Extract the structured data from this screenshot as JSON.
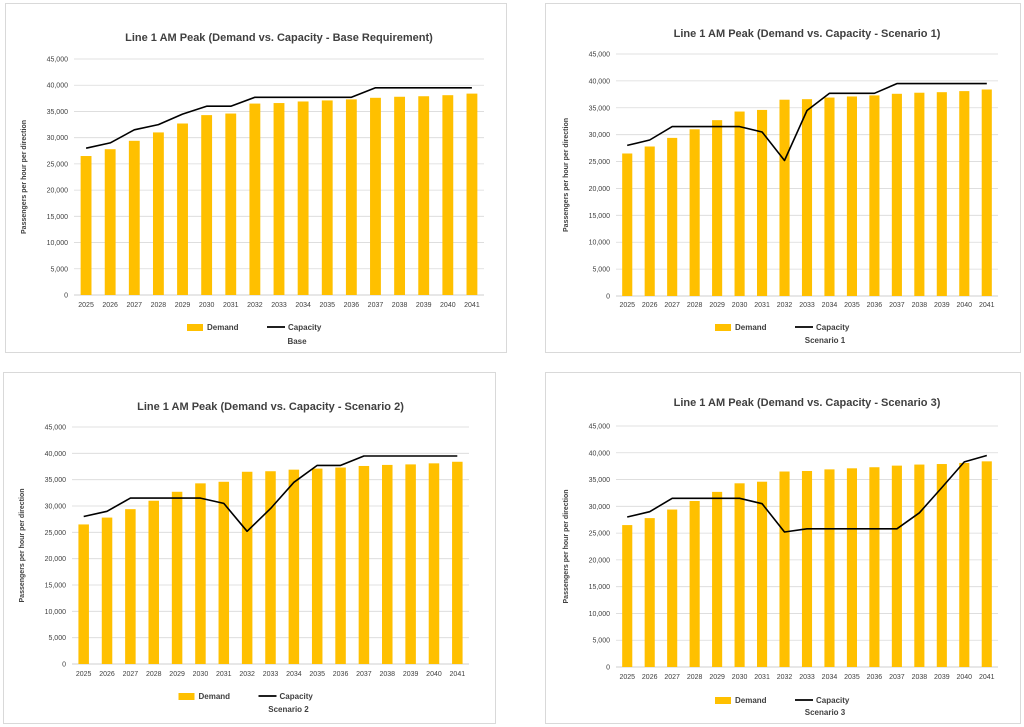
{
  "colors": {
    "demand": "#FFC000",
    "capacity": "#000000",
    "grid": "#d9d9d9",
    "axis": "#bfbfbf",
    "text": "#404040"
  },
  "chart_data": [
    {
      "type": "bar",
      "title": "Line 1 AM Peak (Demand vs. Capacity - Base Requirement)",
      "ylabel": "Passengers per hour per direction",
      "caption": "Base",
      "categories": [
        "2025",
        "2026",
        "2027",
        "2028",
        "2029",
        "2030",
        "2031",
        "2032",
        "2033",
        "2034",
        "2035",
        "2036",
        "2037",
        "2038",
        "2039",
        "2040",
        "2041"
      ],
      "yticks": [
        "0",
        "5,000",
        "10,000",
        "15,000",
        "20,000",
        "25,000",
        "30,000",
        "35,000",
        "40,000",
        "45,000"
      ],
      "ylim": [
        0,
        45000
      ],
      "legend_placement": "bottom",
      "series": [
        {
          "name": "Demand",
          "kind": "bar",
          "values": [
            26500,
            27800,
            29400,
            31000,
            32700,
            34300,
            34600,
            36500,
            36600,
            36900,
            37100,
            37300,
            37600,
            37800,
            37900,
            38100,
            38400
          ]
        },
        {
          "name": "Capacity",
          "kind": "line",
          "values": [
            28000,
            29000,
            31500,
            32500,
            34500,
            36000,
            36000,
            37700,
            37700,
            37700,
            37700,
            37700,
            39500,
            39500,
            39500,
            39500,
            39500
          ]
        }
      ]
    },
    {
      "type": "bar",
      "title": "Line 1 AM Peak (Demand vs. Capacity - Scenario 1)",
      "ylabel": "Passengers per hour per direction",
      "caption": "Scenario 1",
      "categories": [
        "2025",
        "2026",
        "2027",
        "2028",
        "2029",
        "2030",
        "2031",
        "2032",
        "2033",
        "2034",
        "2035",
        "2036",
        "2037",
        "2038",
        "2039",
        "2040",
        "2041"
      ],
      "yticks": [
        "0",
        "5,000",
        "10,000",
        "15,000",
        "20,000",
        "25,000",
        "30,000",
        "35,000",
        "40,000",
        "45,000"
      ],
      "ylim": [
        0,
        45000
      ],
      "legend_placement": "bottom",
      "series": [
        {
          "name": "Demand",
          "kind": "bar",
          "values": [
            26500,
            27800,
            29400,
            31000,
            32700,
            34300,
            34600,
            36500,
            36600,
            36900,
            37100,
            37300,
            37600,
            37800,
            37900,
            38100,
            38400
          ]
        },
        {
          "name": "Capacity",
          "kind": "line",
          "values": [
            28000,
            29000,
            31500,
            31500,
            31500,
            31500,
            30500,
            25200,
            34500,
            37700,
            37700,
            37700,
            39500,
            39500,
            39500,
            39500,
            39500
          ]
        }
      ]
    },
    {
      "type": "bar",
      "title": "Line 1 AM Peak (Demand vs. Capacity - Scenario 2)",
      "ylabel": "Passengers per hour per direction",
      "caption": "Scenario 2",
      "categories": [
        "2025",
        "2026",
        "2027",
        "2028",
        "2029",
        "2030",
        "2031",
        "2032",
        "2033",
        "2034",
        "2035",
        "2036",
        "2037",
        "2038",
        "2039",
        "2040",
        "2041"
      ],
      "yticks": [
        "0",
        "5,000",
        "10,000",
        "15,000",
        "20,000",
        "25,000",
        "30,000",
        "35,000",
        "40,000",
        "45,000"
      ],
      "ylim": [
        0,
        45000
      ],
      "legend_placement": "bottom",
      "series": [
        {
          "name": "Demand",
          "kind": "bar",
          "values": [
            26500,
            27800,
            29400,
            31000,
            32700,
            34300,
            34600,
            36500,
            36600,
            36900,
            37100,
            37300,
            37600,
            37800,
            37900,
            38100,
            38400
          ]
        },
        {
          "name": "Capacity",
          "kind": "line",
          "values": [
            28000,
            29000,
            31500,
            31500,
            31500,
            31500,
            30500,
            25200,
            29500,
            34500,
            37700,
            37700,
            39500,
            39500,
            39500,
            39500,
            39500
          ]
        }
      ]
    },
    {
      "type": "bar",
      "title": "Line 1 AM Peak (Demand vs. Capacity - Scenario 3)",
      "ylabel": "Passengers per hour per direction",
      "caption": "Scenario 3",
      "categories": [
        "2025",
        "2026",
        "2027",
        "2028",
        "2029",
        "2030",
        "2031",
        "2032",
        "2033",
        "2034",
        "2035",
        "2036",
        "2037",
        "2038",
        "2039",
        "2040",
        "2041"
      ],
      "yticks": [
        "0",
        "5,000",
        "10,000",
        "15,000",
        "20,000",
        "25,000",
        "30,000",
        "35,000",
        "40,000",
        "45,000"
      ],
      "ylim": [
        0,
        45000
      ],
      "legend_placement": "bottom",
      "series": [
        {
          "name": "Demand",
          "kind": "bar",
          "values": [
            26500,
            27800,
            29400,
            31000,
            32700,
            34300,
            34600,
            36500,
            36600,
            36900,
            37100,
            37300,
            37600,
            37800,
            37900,
            38100,
            38400
          ]
        },
        {
          "name": "Capacity",
          "kind": "line",
          "values": [
            28000,
            29000,
            31500,
            31500,
            31500,
            31500,
            30500,
            25200,
            25800,
            25800,
            25800,
            25800,
            25800,
            28800,
            33500,
            38300,
            39500
          ]
        }
      ]
    }
  ]
}
